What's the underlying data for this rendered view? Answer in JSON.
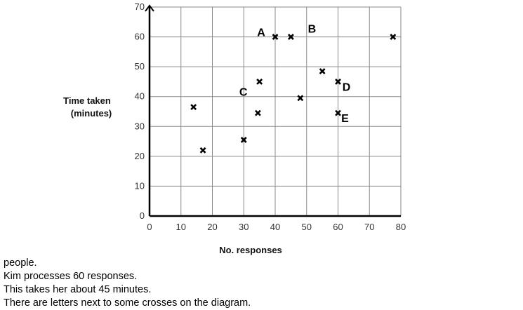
{
  "chart_data": {
    "type": "scatter",
    "xlabel": "No. responses",
    "ylabel": [
      "Time taken",
      "(minutes)"
    ],
    "xlim": [
      0,
      80
    ],
    "ylim": [
      0,
      70
    ],
    "x_ticks": [
      0,
      10,
      20,
      30,
      40,
      50,
      60,
      70,
      80
    ],
    "y_ticks": [
      0,
      10,
      20,
      30,
      40,
      50,
      60,
      70
    ],
    "grid": true,
    "marker": "cross",
    "points": [
      {
        "x": 14,
        "y": 36.5,
        "label": ""
      },
      {
        "x": 17,
        "y": 22,
        "label": ""
      },
      {
        "x": 30,
        "y": 25.5,
        "label": ""
      },
      {
        "x": 34.5,
        "y": 34.5,
        "label": ""
      },
      {
        "x": 35,
        "y": 45,
        "label": "C"
      },
      {
        "x": 40,
        "y": 60,
        "label": "A"
      },
      {
        "x": 45,
        "y": 60,
        "label": "B"
      },
      {
        "x": 48,
        "y": 39.5,
        "label": ""
      },
      {
        "x": 55,
        "y": 48.5,
        "label": ""
      },
      {
        "x": 60,
        "y": 45,
        "label": "D"
      },
      {
        "x": 60,
        "y": 34.5,
        "label": "E"
      },
      {
        "x": 77.5,
        "y": 60,
        "label": ""
      }
    ]
  },
  "caption": {
    "lines": [
      "people.",
      "Kim processes 60 responses.",
      "This takes her about 45 minutes.",
      "There are letters next to some crosses on the diagram."
    ]
  }
}
